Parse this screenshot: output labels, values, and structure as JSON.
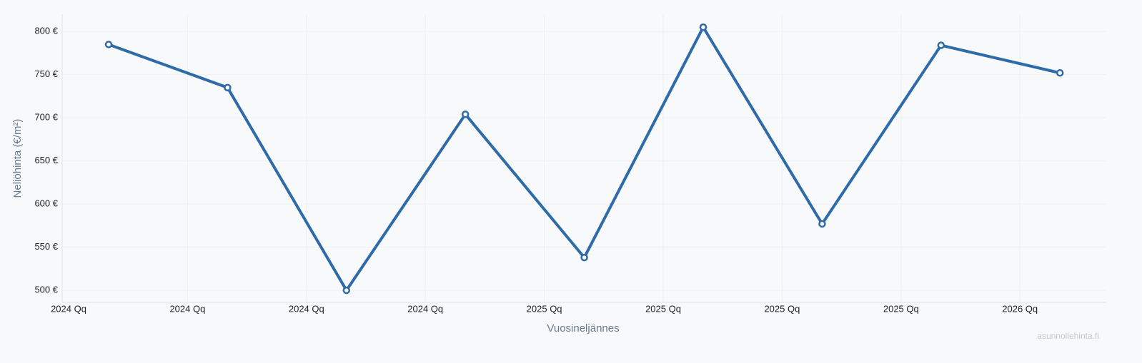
{
  "chart_data": {
    "type": "line",
    "x_label": "Vuosineljännes",
    "y_label": "Neliöhinta (€/m²)",
    "watermark": "asunnollehinta.fi",
    "categories": [
      "2024 Qq",
      "2024 Qq",
      "2024 Qq",
      "2024 Qq",
      "2025 Qq",
      "2025 Qq",
      "2025 Qq",
      "2025 Qq",
      "2026 Qq"
    ],
    "series": [
      {
        "name": "Neliöhinta",
        "color": "#2e6ba8",
        "values": [
          785,
          735,
          500,
          704,
          538,
          805,
          577,
          784,
          752
        ]
      }
    ],
    "ylim": [
      486,
      820
    ],
    "yticks": [
      {
        "value": 500,
        "label": "500 €"
      },
      {
        "value": 550,
        "label": "550 €"
      },
      {
        "value": 600,
        "label": "600 €"
      },
      {
        "value": 650,
        "label": "650 €"
      },
      {
        "value": 700,
        "label": "700 €"
      },
      {
        "value": 750,
        "label": "750 €"
      },
      {
        "value": 800,
        "label": "800 €"
      }
    ],
    "grid": true
  }
}
